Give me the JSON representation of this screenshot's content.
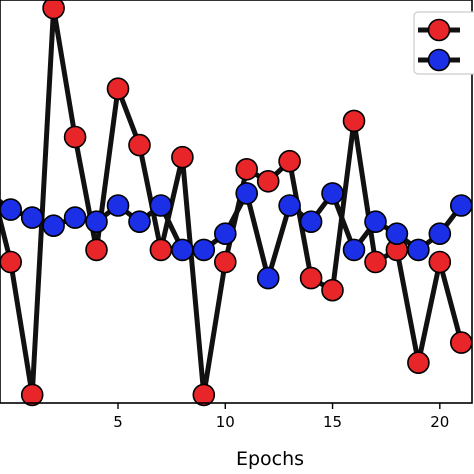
{
  "chart_data": {
    "type": "line",
    "xlabel": "Epochs",
    "ylabel": "",
    "x_ticks": [
      5,
      10,
      15,
      20
    ],
    "xlim": [
      -0.5,
      21.5
    ],
    "ylim": [
      0,
      10
    ],
    "grid": false,
    "legend_position": "top-right",
    "line_color": "#111111",
    "marker_edge_color": "#000000",
    "series": [
      {
        "color": "#e8262a",
        "x": [
          -1,
          0,
          1,
          2,
          3,
          4,
          5,
          6,
          7,
          8,
          9,
          10,
          11,
          12,
          13,
          14,
          15,
          16,
          17,
          18,
          19,
          20,
          21
        ],
        "values": [
          5.6,
          3.5,
          0.2,
          9.8,
          6.6,
          3.8,
          7.8,
          6.4,
          3.8,
          6.1,
          0.2,
          3.5,
          5.8,
          5.5,
          6.0,
          3.1,
          2.8,
          7.0,
          3.5,
          3.8,
          1.0,
          3.5,
          1.5
        ]
      },
      {
        "color": "#1a2fe6",
        "x": [
          -1,
          0,
          1,
          2,
          3,
          4,
          5,
          6,
          7,
          8,
          9,
          10,
          11,
          12,
          13,
          14,
          15,
          16,
          17,
          18,
          19,
          20,
          21
        ],
        "values": [
          5.2,
          4.8,
          4.6,
          4.4,
          4.6,
          4.5,
          4.9,
          4.5,
          4.9,
          3.8,
          3.8,
          4.2,
          5.2,
          3.1,
          4.9,
          4.5,
          5.2,
          3.8,
          4.5,
          4.2,
          3.8,
          4.2,
          4.9
        ]
      }
    ]
  }
}
